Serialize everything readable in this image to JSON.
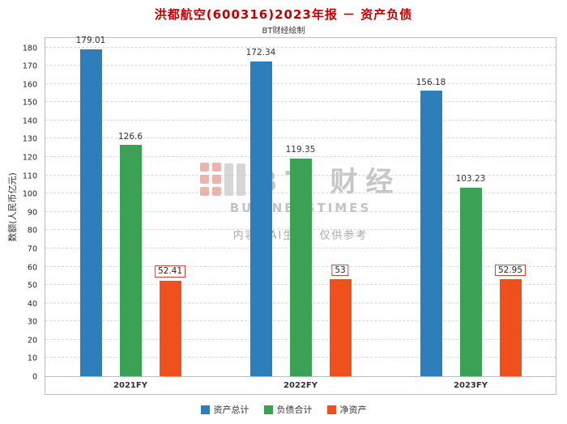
{
  "chart": {
    "title": "洪都航空(600316)2023年报 － 资产负债",
    "subtitle": "BT财经绘制",
    "ylabel": "数额(人民币亿元)"
  },
  "watermark": {
    "brand_cn": "BT 财经",
    "brand_en": "BUSINESSTIMES",
    "notice": "内容由AI生成，仅供参考"
  },
  "chart_data": {
    "type": "bar",
    "title": "洪都航空(600316)2023年报 － 资产负债",
    "subtitle": "BT财经绘制",
    "categories": [
      "2021FY",
      "2022FY",
      "2023FY"
    ],
    "series": [
      {
        "name": "资产总计",
        "color": "#2e7ebb",
        "values": [
          179.01,
          172.34,
          156.18
        ],
        "label_boxed": false
      },
      {
        "name": "负债合计",
        "color": "#3aa155",
        "values": [
          126.6,
          119.35,
          103.23
        ],
        "label_boxed": false
      },
      {
        "name": "净资产",
        "color": "#f0501e",
        "values": [
          52.41,
          53,
          52.95
        ],
        "label_boxed": true
      }
    ],
    "xlabel": "",
    "ylabel": "数额(人民币亿元)",
    "ylim": [
      0,
      180
    ],
    "ytick_step": 10,
    "grid": "dashed-horizontal",
    "legend_position": "bottom"
  }
}
